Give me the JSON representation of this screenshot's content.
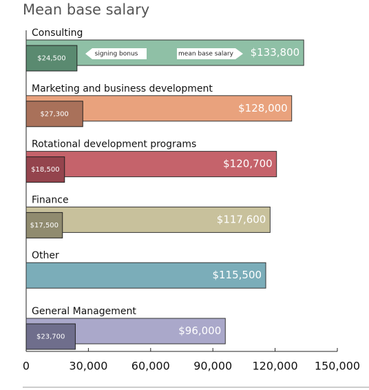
{
  "chart_data": {
    "type": "bar",
    "orientation": "horizontal",
    "title": "Mean base salary",
    "categories": [
      "Consulting",
      "Marketing and business development",
      "Rotational development programs",
      "Finance",
      "Other",
      "General Management"
    ],
    "series": [
      {
        "name": "mean base salary",
        "colors": [
          "#8fc0a6",
          "#e9a27d",
          "#c5636b",
          "#c8c19c",
          "#7badb9",
          "#aaa8ca"
        ],
        "values": [
          133800,
          128000,
          120700,
          117600,
          115500,
          96000
        ],
        "value_labels": [
          "$133,800",
          "$128,000",
          "$120,700",
          "$117,600",
          "$115,500",
          "$96,000"
        ]
      },
      {
        "name": "signing bonus",
        "colors": [
          "#5a8a70",
          "#a9715a",
          "#94444d",
          "#908b6f",
          null,
          "#6f6e8c"
        ],
        "values": [
          24500,
          27300,
          18500,
          17500,
          null,
          23700
        ],
        "value_labels": [
          "$24,500",
          "$27,300",
          "$18,500",
          "$17,500",
          null,
          "$23,700"
        ]
      }
    ],
    "xlim": [
      0,
      150000
    ],
    "xticks": [
      0,
      {
        "value": 30000,
        "label": "30,000"
      },
      {
        "value": 60000,
        "label": "60,000"
      },
      {
        "value": 90000,
        "label": "90,000"
      },
      {
        "value": 120000,
        "label": "120,000"
      },
      {
        "value": 150000,
        "label": "150,000"
      }
    ]
  }
}
